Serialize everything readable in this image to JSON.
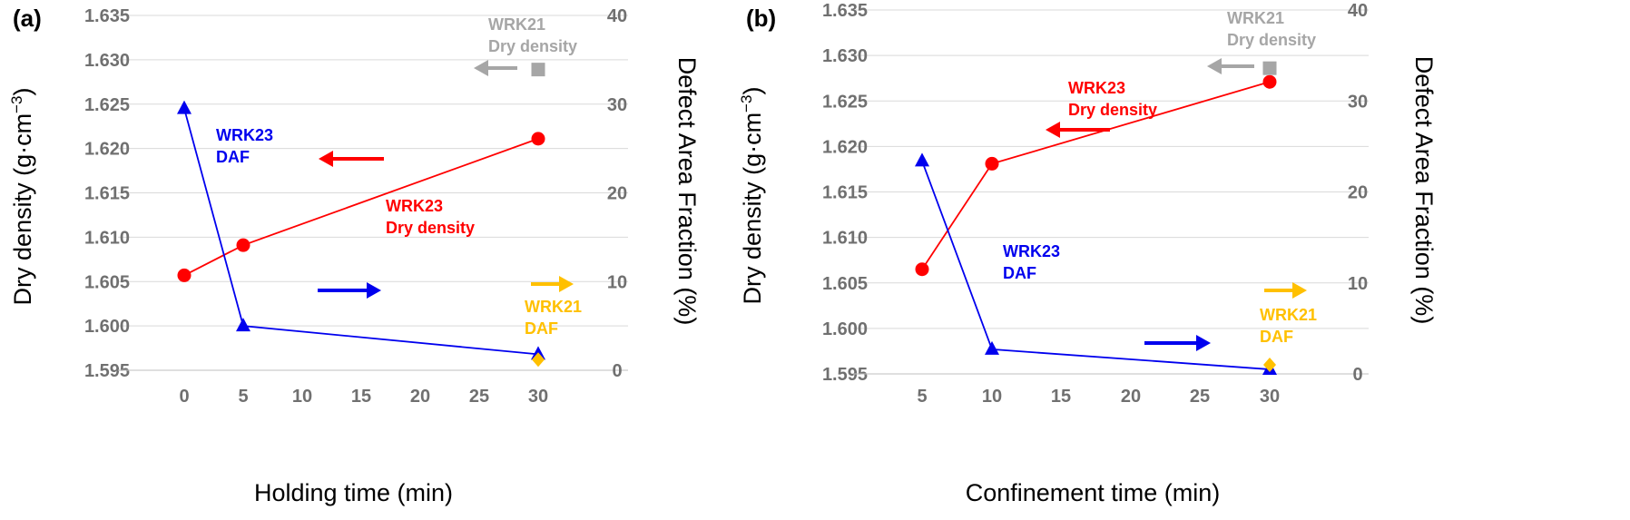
{
  "chart_data": [
    {
      "panel_label": "(a)",
      "type": "line",
      "xlabel": "Holding time (min)",
      "ylabel": "Dry density",
      "ylabel_unit": "(g·cm",
      "ylabel_sup": "−3",
      "ylabel_close": ")",
      "y2label": "Defect Area Fraction (%)",
      "x_ticks": [
        "0",
        "5",
        "10",
        "15",
        "20",
        "25",
        "30"
      ],
      "y_ticks": [
        "1.595",
        "1.600",
        "1.605",
        "1.610",
        "1.615",
        "1.620",
        "1.625",
        "1.630",
        "1.635"
      ],
      "y2_ticks": [
        "0",
        "10",
        "20",
        "30",
        "40"
      ],
      "ylim": [
        1.595,
        1.635
      ],
      "y2lim": [
        0,
        40
      ],
      "series": [
        {
          "name": "WRK23 Dry density",
          "axis": "left",
          "color": "#ff0000",
          "marker": "circle",
          "line": true,
          "x": [
            "1",
            "5",
            "30"
          ],
          "values": [
            1.6057,
            1.6091,
            1.6211
          ]
        },
        {
          "name": "WRK23 DAF",
          "axis": "right",
          "color": "#0000ee",
          "marker": "triangle",
          "line": true,
          "x": [
            "1",
            "5",
            "30"
          ],
          "values": [
            29.5,
            5.0,
            1.8
          ]
        },
        {
          "name": "WRK21 Dry density",
          "axis": "left",
          "color": "#a6a6a6",
          "marker": "square",
          "line": false,
          "x": [
            "30"
          ],
          "values": [
            1.6289
          ]
        },
        {
          "name": "WRK21 DAF",
          "axis": "right",
          "color": "#ffc000",
          "marker": "diamond",
          "line": false,
          "x": [
            "30"
          ],
          "values": [
            1.2
          ]
        }
      ],
      "annotations": [
        {
          "lines": [
            "WRK23",
            "DAF"
          ],
          "color": "#0000ee"
        },
        {
          "lines": [
            "WRK23",
            "Dry density"
          ],
          "color": "#ff0000"
        },
        {
          "lines": [
            "WRK21",
            "Dry density"
          ],
          "color": "#a6a6a6"
        },
        {
          "lines": [
            "WRK21",
            "DAF"
          ],
          "color": "#ffc000"
        }
      ],
      "arrows": [
        {
          "color": "#ff0000",
          "direction": "left"
        },
        {
          "color": "#0000ee",
          "direction": "right"
        },
        {
          "color": "#a6a6a6",
          "direction": "left"
        },
        {
          "color": "#ffc000",
          "direction": "right"
        }
      ]
    },
    {
      "panel_label": "(b)",
      "type": "line",
      "xlabel": "Confinement time (min)",
      "ylabel": "Dry density",
      "ylabel_unit": "(g·cm",
      "ylabel_sup": "−3",
      "ylabel_close": ")",
      "y2label": "Defect Area Fraction (%)",
      "x_ticks": [
        "5",
        "10",
        "15",
        "20",
        "25",
        "30"
      ],
      "y_ticks": [
        "1.595",
        "1.600",
        "1.605",
        "1.610",
        "1.615",
        "1.620",
        "1.625",
        "1.630",
        "1.635"
      ],
      "y2_ticks": [
        "0",
        "10",
        "20",
        "30",
        "40"
      ],
      "ylim": [
        1.595,
        1.635
      ],
      "y2lim": [
        0,
        40
      ],
      "series": [
        {
          "name": "WRK23 Dry density",
          "axis": "left",
          "color": "#ff0000",
          "marker": "circle",
          "line": true,
          "x": [
            "5",
            "10",
            "30"
          ],
          "values": [
            1.6065,
            1.6181,
            1.6271
          ]
        },
        {
          "name": "WRK23 DAF",
          "axis": "right",
          "color": "#0000ee",
          "marker": "triangle",
          "line": true,
          "x": [
            "5",
            "10",
            "30"
          ],
          "values": [
            23.4,
            2.7,
            0.5
          ]
        },
        {
          "name": "WRK21 Dry density",
          "axis": "left",
          "color": "#a6a6a6",
          "marker": "square",
          "line": false,
          "x": [
            "30"
          ],
          "values": [
            1.6286
          ]
        },
        {
          "name": "WRK21 DAF",
          "axis": "right",
          "color": "#ffc000",
          "marker": "diamond",
          "line": false,
          "x": [
            "30"
          ],
          "values": [
            1.0
          ]
        }
      ],
      "annotations": [
        {
          "lines": [
            "WRK23",
            "Dry density"
          ],
          "color": "#ff0000"
        },
        {
          "lines": [
            "WRK23",
            "DAF"
          ],
          "color": "#0000ee"
        },
        {
          "lines": [
            "WRK21",
            "Dry density"
          ],
          "color": "#a6a6a6"
        },
        {
          "lines": [
            "WRK21",
            "DAF"
          ],
          "color": "#ffc000"
        }
      ],
      "arrows": [
        {
          "color": "#ff0000",
          "direction": "left"
        },
        {
          "color": "#0000ee",
          "direction": "right"
        },
        {
          "color": "#a6a6a6",
          "direction": "left"
        },
        {
          "color": "#ffc000",
          "direction": "right"
        }
      ]
    }
  ]
}
